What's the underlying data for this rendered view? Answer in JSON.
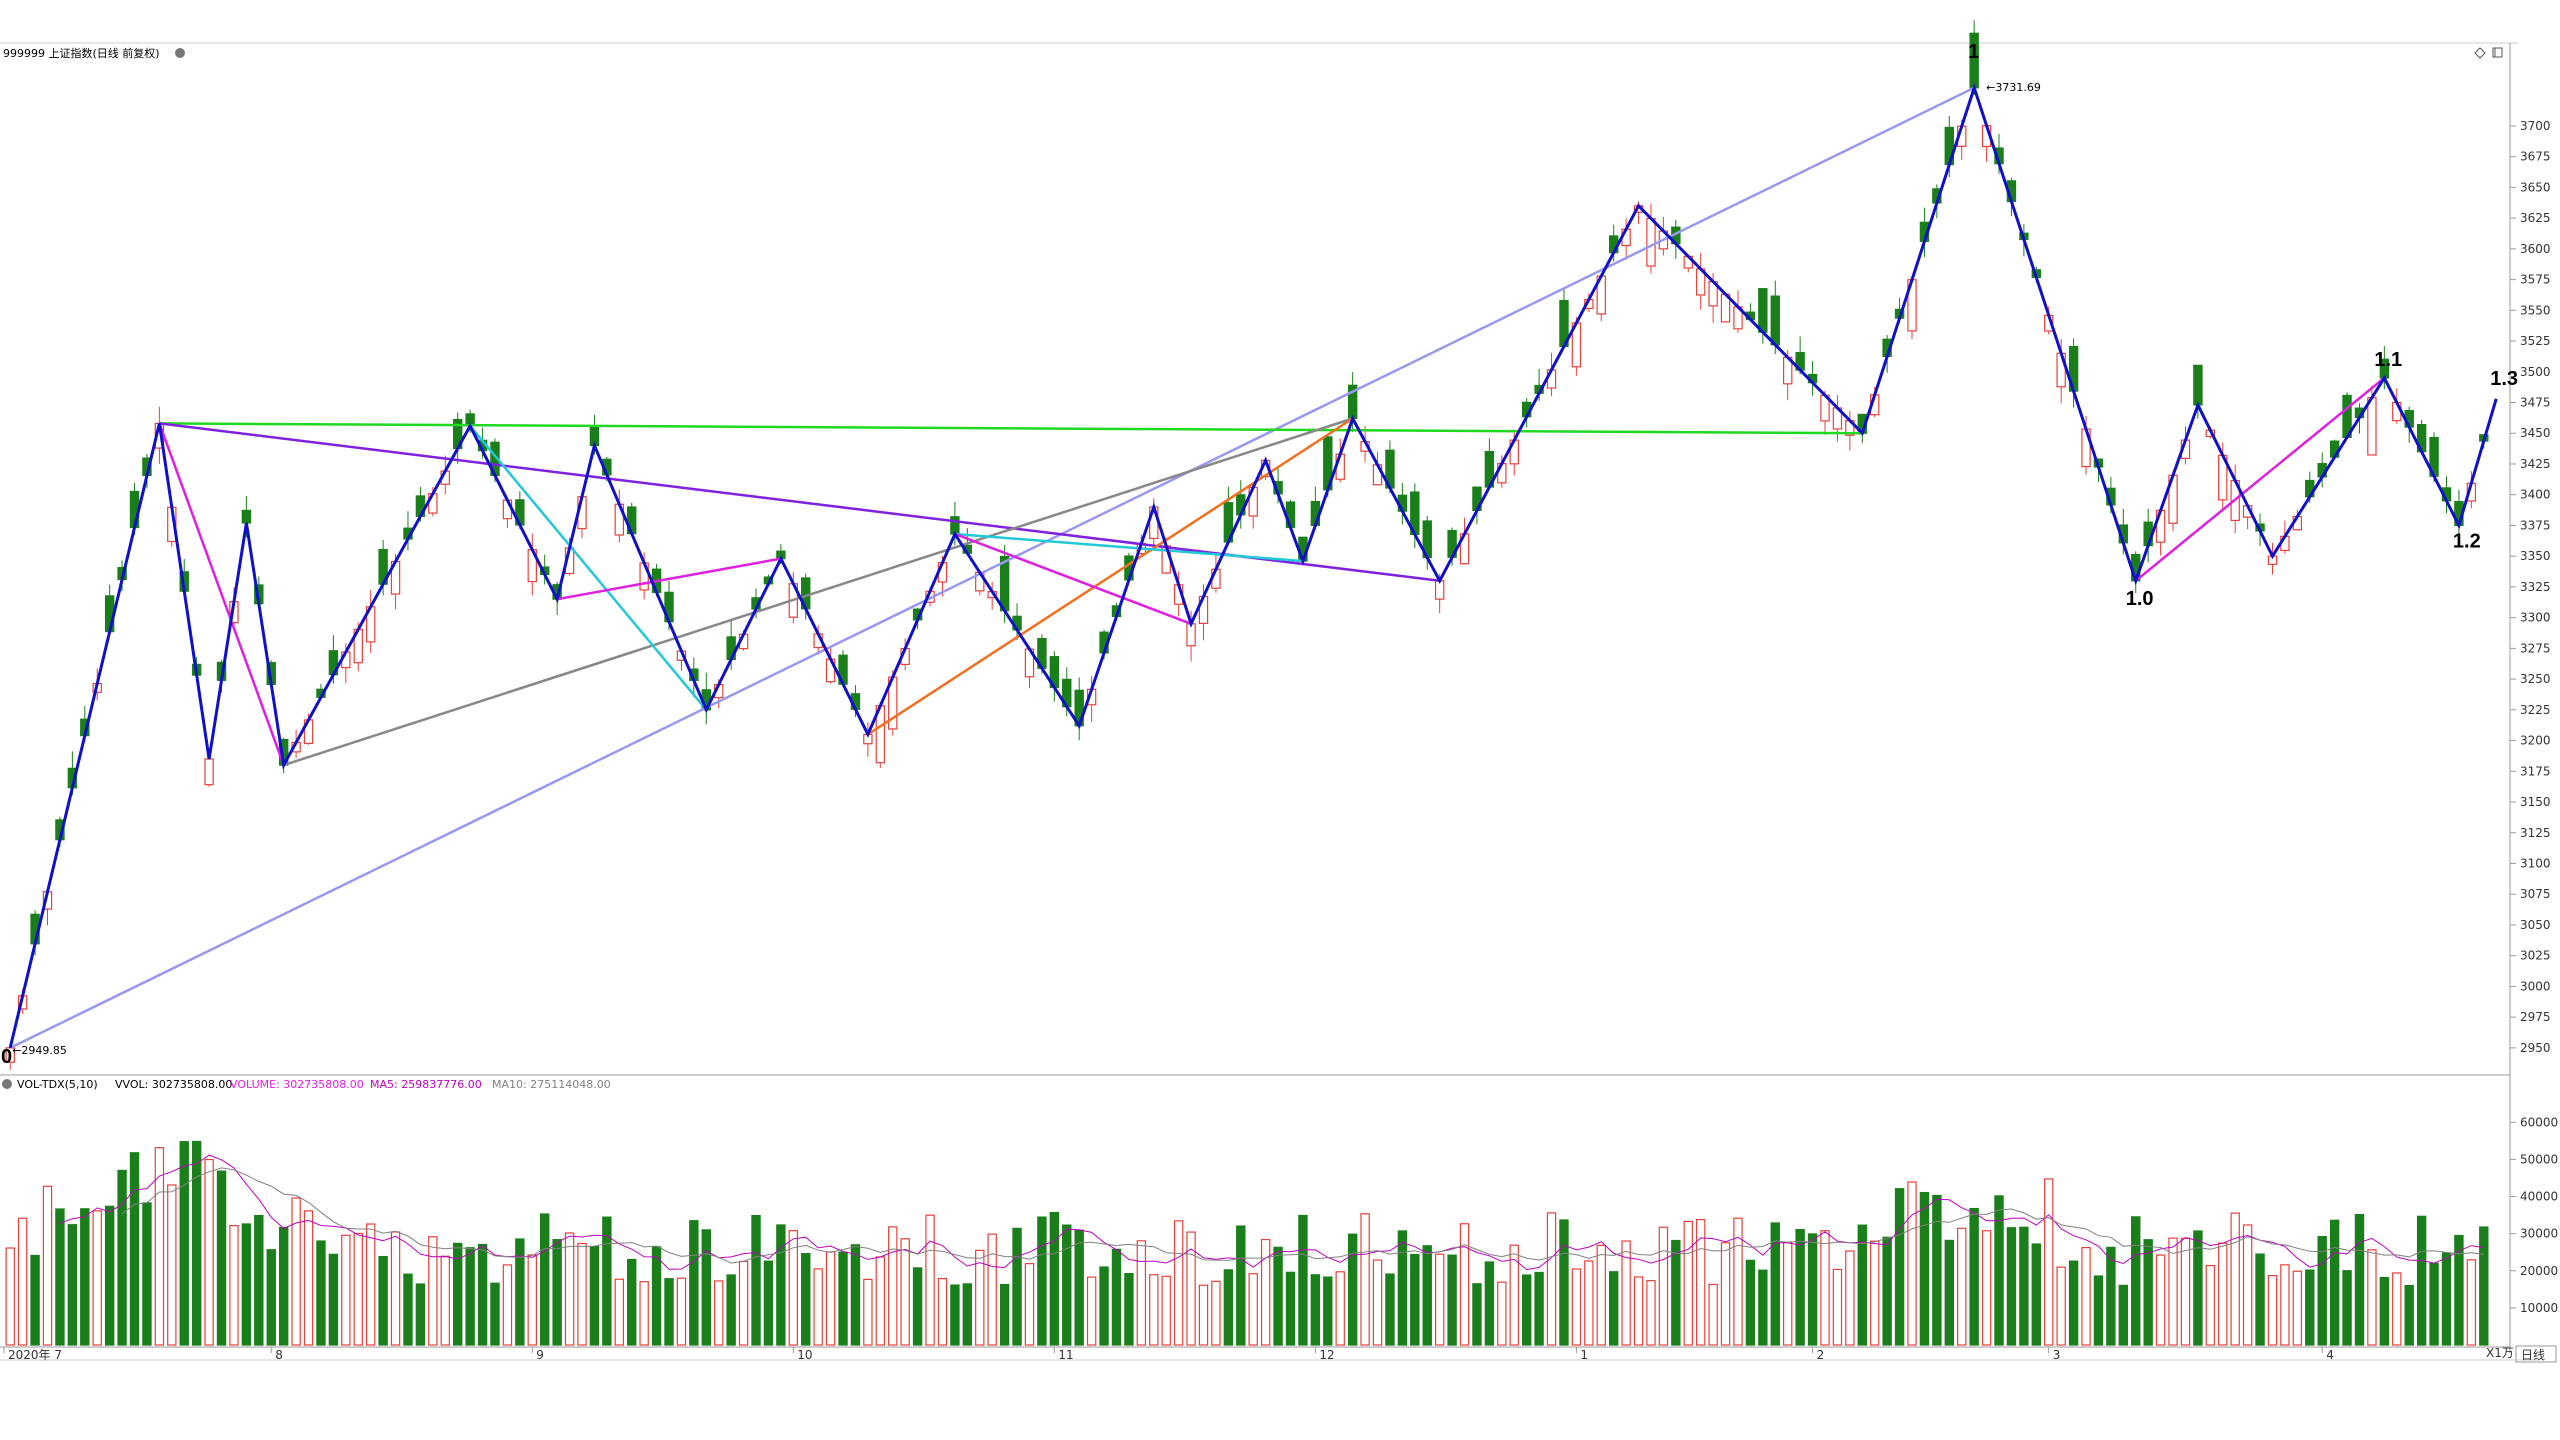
{
  "header": {
    "title": "999999 上证指数(日线 前复权)",
    "icons": [
      "diamond-icon",
      "window-restore-icon"
    ]
  },
  "volume_header": {
    "indicator": "VOL-TDX(5,10)",
    "vvol": "VVOL: 302735808.00",
    "volume": "VOLUME: 302735808.00",
    "ma5": "MA5: 259837776.00",
    "ma10": "MA10: 275114048.00"
  },
  "colors": {
    "up": "#e8403a",
    "down": "#1a7f1a",
    "wave": "#1010c8",
    "magenta": "#e020e0",
    "cyan": "#20c8d8",
    "purple": "#8020e0",
    "gray": "#888888",
    "orange": "#f07020",
    "green_line": "#20d820",
    "lavender": "#9898f0",
    "ma5": "#c000c0",
    "ma10": "#808080"
  },
  "annotations": {
    "high_value": "3731.69",
    "low_value": "2949.85",
    "wave_labels": [
      "0",
      "1",
      "1.0",
      "1.1",
      "1.2",
      "1.3"
    ]
  },
  "corner": {
    "unit": "X1万",
    "period": "日线"
  },
  "chart_data": {
    "type": "candlestick",
    "title": "999999 上证指数(日线 前复权)",
    "y_ticks": [
      2950,
      2975,
      3000,
      3025,
      3050,
      3075,
      3100,
      3125,
      3150,
      3175,
      3200,
      3225,
      3250,
      3275,
      3300,
      3325,
      3350,
      3375,
      3400,
      3425,
      3450,
      3475,
      3500,
      3525,
      3550,
      3575,
      3600,
      3625,
      3650,
      3675,
      3700
    ],
    "ylim": [
      2932,
      3752
    ],
    "vol_ticks": [
      10000,
      20000,
      30000,
      40000,
      50000,
      60000
    ],
    "vol_unit": "X1万",
    "months": [
      "2020年 7",
      "8",
      "9",
      "10",
      "11",
      "12",
      "1",
      "2",
      "3",
      "4"
    ],
    "count": 200,
    "high": 3731.69,
    "low": 2949.85,
    "wave_points": [
      {
        "label": "0",
        "i": 0,
        "price": 2950
      },
      {
        "label": "1",
        "i": 158,
        "price": 3731
      }
    ],
    "blue_waves": [
      [
        [
          0,
          2950
        ],
        [
          12,
          3458
        ],
        [
          16,
          3185
        ],
        [
          19,
          3377
        ],
        [
          22,
          3180
        ],
        [
          37,
          3456
        ],
        [
          44,
          3315
        ],
        [
          47,
          3440
        ],
        [
          56,
          3225
        ],
        [
          62,
          3348
        ],
        [
          69,
          3205
        ],
        [
          76,
          3368
        ],
        [
          86,
          3212
        ],
        [
          92,
          3390
        ],
        [
          95,
          3295
        ],
        [
          101,
          3428
        ],
        [
          104,
          3346
        ],
        [
          108,
          3462
        ],
        [
          115,
          3330
        ],
        [
          131,
          3635
        ],
        [
          149,
          3450
        ],
        [
          158,
          3731
        ],
        [
          171,
          3330
        ],
        [
          176,
          3473
        ],
        [
          182,
          3350
        ],
        [
          191,
          3495
        ],
        [
          197,
          3375
        ],
        [
          200,
          3478
        ]
      ]
    ],
    "labels_pos": {
      "1.0": [
        172,
        3314
      ],
      "1.1": [
        193,
        3506
      ],
      "1.2": [
        198,
        3360
      ],
      "1.3": [
        201,
        3490
      ]
    }
  }
}
